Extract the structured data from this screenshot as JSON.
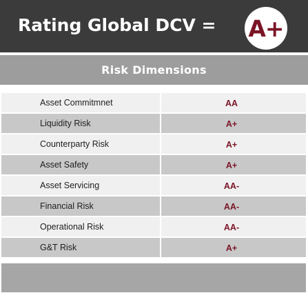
{
  "header": {
    "title": "Rating Global DCV =",
    "grade": "A+"
  },
  "table": {
    "heading": "Risk Dimensions",
    "rows": [
      {
        "name": "Asset Commitmnet",
        "rating": "AA"
      },
      {
        "name": "Liquidity Risk",
        "rating": "A+"
      },
      {
        "name": "Counterparty Risk",
        "rating": "A+"
      },
      {
        "name": "Asset Safety",
        "rating": "A+"
      },
      {
        "name": "Asset Servicing",
        "rating": "AA-"
      },
      {
        "name": "Financial Risk",
        "rating": "AA-"
      },
      {
        "name": "Operational Risk",
        "rating": "AA-"
      },
      {
        "name": "G&T Risk",
        "rating": "A+"
      }
    ]
  },
  "colors": {
    "header_bg": "#3b3b3c",
    "subheader_bg": "#9d9d9e",
    "row_light": "#f0f0f0",
    "row_dark": "#c8c8c8",
    "rating_color": "#7a1526"
  }
}
